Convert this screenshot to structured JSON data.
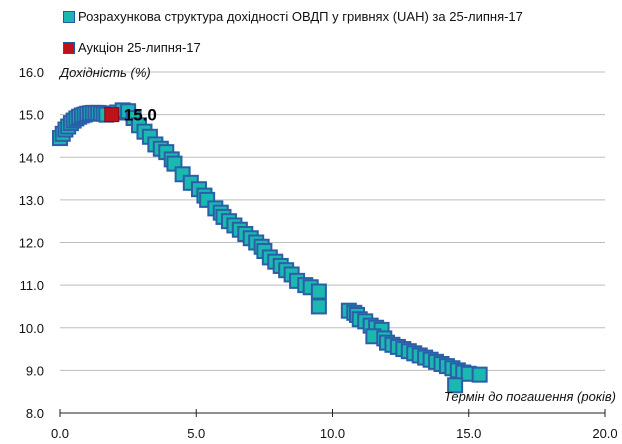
{
  "chart_data": {
    "type": "scatter",
    "title": "",
    "ylabel": "Дохідність (%)",
    "xlabel": "Термін до погашення (років)",
    "xlim": [
      0,
      20
    ],
    "ylim": [
      8,
      16
    ],
    "xticks": [
      "0.0",
      "5.0",
      "10.0",
      "15.0",
      "20.0"
    ],
    "yticks": [
      "8.0",
      "9.0",
      "10.0",
      "11.0",
      "12.0",
      "13.0",
      "14.0",
      "15.0",
      "16.0"
    ],
    "grid": true,
    "legend_position": "top-left",
    "series": [
      {
        "name": "Розрахункова структура  дохідності  ОВДП  у гривнях  (UAH) за 25-липня-17",
        "color": "#1ab8b0",
        "points": [
          [
            0.0,
            14.45
          ],
          [
            0.1,
            14.55
          ],
          [
            0.2,
            14.65
          ],
          [
            0.3,
            14.72
          ],
          [
            0.4,
            14.8
          ],
          [
            0.5,
            14.86
          ],
          [
            0.6,
            14.91
          ],
          [
            0.7,
            14.95
          ],
          [
            0.8,
            14.98
          ],
          [
            0.9,
            15.0
          ],
          [
            1.0,
            15.02
          ],
          [
            1.1,
            15.03
          ],
          [
            1.2,
            15.04
          ],
          [
            1.3,
            15.04
          ],
          [
            1.4,
            15.04
          ],
          [
            1.5,
            15.03
          ],
          [
            1.6,
            15.02
          ],
          [
            1.7,
            15.0
          ],
          [
            2.1,
            15.05
          ],
          [
            2.3,
            15.1
          ],
          [
            2.5,
            15.08
          ],
          [
            2.7,
            14.92
          ],
          [
            2.9,
            14.75
          ],
          [
            3.1,
            14.6
          ],
          [
            3.3,
            14.48
          ],
          [
            3.5,
            14.3
          ],
          [
            3.7,
            14.2
          ],
          [
            3.9,
            14.12
          ],
          [
            4.1,
            13.95
          ],
          [
            4.2,
            13.85
          ],
          [
            4.5,
            13.6
          ],
          [
            4.8,
            13.4
          ],
          [
            5.1,
            13.25
          ],
          [
            5.3,
            13.1
          ],
          [
            5.4,
            13.0
          ],
          [
            5.7,
            12.8
          ],
          [
            5.9,
            12.7
          ],
          [
            6.0,
            12.6
          ],
          [
            6.2,
            12.5
          ],
          [
            6.4,
            12.4
          ],
          [
            6.6,
            12.3
          ],
          [
            6.8,
            12.2
          ],
          [
            7.0,
            12.1
          ],
          [
            7.2,
            12.0
          ],
          [
            7.4,
            11.9
          ],
          [
            7.5,
            11.8
          ],
          [
            7.7,
            11.65
          ],
          [
            7.9,
            11.55
          ],
          [
            8.1,
            11.45
          ],
          [
            8.3,
            11.35
          ],
          [
            8.5,
            11.25
          ],
          [
            8.7,
            11.1
          ],
          [
            9.0,
            11.0
          ],
          [
            9.2,
            10.95
          ],
          [
            9.5,
            10.85
          ],
          [
            9.5,
            10.5
          ],
          [
            10.6,
            10.4
          ],
          [
            10.8,
            10.35
          ],
          [
            10.9,
            10.3
          ],
          [
            11.0,
            10.2
          ],
          [
            11.2,
            10.15
          ],
          [
            11.4,
            10.05
          ],
          [
            11.6,
            10.0
          ],
          [
            11.8,
            9.95
          ],
          [
            11.5,
            9.8
          ],
          [
            11.9,
            9.75
          ],
          [
            12.0,
            9.65
          ],
          [
            12.2,
            9.6
          ],
          [
            12.4,
            9.55
          ],
          [
            12.6,
            9.5
          ],
          [
            12.8,
            9.45
          ],
          [
            13.0,
            9.4
          ],
          [
            13.2,
            9.35
          ],
          [
            13.4,
            9.3
          ],
          [
            13.6,
            9.25
          ],
          [
            13.8,
            9.2
          ],
          [
            14.0,
            9.15
          ],
          [
            14.2,
            9.1
          ],
          [
            14.4,
            9.05
          ],
          [
            14.6,
            9.0
          ],
          [
            14.8,
            8.95
          ],
          [
            15.0,
            8.92
          ],
          [
            15.4,
            8.9
          ],
          [
            14.5,
            8.65
          ]
        ]
      },
      {
        "name": "Аукціон 25-липня-17",
        "color": "#c0101a",
        "points": [
          [
            1.9,
            15.0
          ]
        ],
        "label": "15.0"
      }
    ]
  }
}
